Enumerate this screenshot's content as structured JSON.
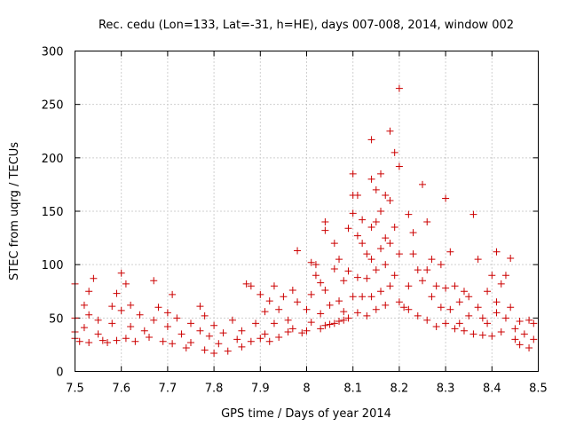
{
  "chart_data": {
    "type": "scatter",
    "title": "Rec. cedu (Lon=133, Lat=-31, h=HE), days 007-008, 2014, window 002",
    "xlabel": "GPS time / Days of year 2014",
    "ylabel": "STEC from uqrg / TECUs",
    "xlim": [
      7.5,
      8.5
    ],
    "ylim": [
      0,
      300
    ],
    "xticks": [
      7.5,
      7.6,
      7.7,
      7.8,
      7.9,
      8.0,
      8.1,
      8.2,
      8.3,
      8.4,
      8.5
    ],
    "xtick_labels": [
      "7.5",
      "7.6",
      "7.7",
      "7.8",
      "7.9",
      "8",
      "8.1",
      "8.2",
      "8.3",
      "8.4",
      "8.5"
    ],
    "yticks": [
      0,
      50,
      100,
      150,
      200,
      250,
      300
    ],
    "ytick_labels": [
      "0",
      "50",
      "100",
      "150",
      "200",
      "250",
      "300"
    ],
    "grid": true,
    "marker": "+",
    "color": "#cc0000",
    "series": [
      {
        "name": "STEC",
        "points": [
          [
            7.5,
            82
          ],
          [
            7.5,
            50
          ],
          [
            7.5,
            37
          ],
          [
            7.5,
            31
          ],
          [
            7.51,
            28
          ],
          [
            7.52,
            41
          ],
          [
            7.52,
            62
          ],
          [
            7.53,
            75
          ],
          [
            7.53,
            53
          ],
          [
            7.53,
            27
          ],
          [
            7.54,
            87
          ],
          [
            7.55,
            48
          ],
          [
            7.55,
            35
          ],
          [
            7.56,
            29
          ],
          [
            7.57,
            27
          ],
          [
            7.58,
            61
          ],
          [
            7.58,
            45
          ],
          [
            7.59,
            73
          ],
          [
            7.59,
            29
          ],
          [
            7.6,
            92
          ],
          [
            7.6,
            57
          ],
          [
            7.61,
            82
          ],
          [
            7.61,
            31
          ],
          [
            7.62,
            62
          ],
          [
            7.62,
            42
          ],
          [
            7.63,
            28
          ],
          [
            7.64,
            53
          ],
          [
            7.65,
            38
          ],
          [
            7.66,
            32
          ],
          [
            7.67,
            85
          ],
          [
            7.67,
            48
          ],
          [
            7.68,
            60
          ],
          [
            7.69,
            28
          ],
          [
            7.7,
            55
          ],
          [
            7.7,
            42
          ],
          [
            7.71,
            72
          ],
          [
            7.71,
            26
          ],
          [
            7.72,
            50
          ],
          [
            7.73,
            35
          ],
          [
            7.74,
            22
          ],
          [
            7.75,
            45
          ],
          [
            7.75,
            27
          ],
          [
            7.77,
            61
          ],
          [
            7.77,
            38
          ],
          [
            7.78,
            52
          ],
          [
            7.78,
            20
          ],
          [
            7.79,
            33
          ],
          [
            7.8,
            17
          ],
          [
            7.8,
            43
          ],
          [
            7.81,
            26
          ],
          [
            7.82,
            36
          ],
          [
            7.83,
            19
          ],
          [
            7.84,
            48
          ],
          [
            7.85,
            30
          ],
          [
            7.86,
            38
          ],
          [
            7.86,
            23
          ],
          [
            7.87,
            82
          ],
          [
            7.88,
            80
          ],
          [
            7.88,
            28
          ],
          [
            7.89,
            45
          ],
          [
            7.9,
            72
          ],
          [
            7.9,
            31
          ],
          [
            7.91,
            56
          ],
          [
            7.91,
            35
          ],
          [
            7.92,
            66
          ],
          [
            7.92,
            28
          ],
          [
            7.93,
            80
          ],
          [
            7.93,
            45
          ],
          [
            7.94,
            58
          ],
          [
            7.94,
            32
          ],
          [
            7.95,
            70
          ],
          [
            7.96,
            48
          ],
          [
            7.96,
            37
          ],
          [
            7.97,
            76
          ],
          [
            7.97,
            40
          ],
          [
            7.98,
            113
          ],
          [
            7.98,
            65
          ],
          [
            7.99,
            36
          ],
          [
            8.0,
            58
          ],
          [
            8.0,
            38
          ],
          [
            8.01,
            102
          ],
          [
            8.01,
            72
          ],
          [
            8.01,
            46
          ],
          [
            8.02,
            100
          ],
          [
            8.02,
            90
          ],
          [
            8.03,
            83
          ],
          [
            8.03,
            54
          ],
          [
            8.03,
            40
          ],
          [
            8.04,
            140
          ],
          [
            8.04,
            132
          ],
          [
            8.04,
            76
          ],
          [
            8.04,
            43
          ],
          [
            8.05,
            62
          ],
          [
            8.05,
            44
          ],
          [
            8.06,
            120
          ],
          [
            8.06,
            96
          ],
          [
            8.06,
            45
          ],
          [
            8.07,
            105
          ],
          [
            8.07,
            66
          ],
          [
            8.07,
            47
          ],
          [
            8.08,
            85
          ],
          [
            8.08,
            56
          ],
          [
            8.08,
            48
          ],
          [
            8.09,
            134
          ],
          [
            8.09,
            94
          ],
          [
            8.09,
            50
          ],
          [
            8.1,
            185
          ],
          [
            8.1,
            165
          ],
          [
            8.1,
            148
          ],
          [
            8.1,
            70
          ],
          [
            8.11,
            165
          ],
          [
            8.11,
            127
          ],
          [
            8.11,
            88
          ],
          [
            8.11,
            55
          ],
          [
            8.12,
            142
          ],
          [
            8.12,
            120
          ],
          [
            8.12,
            70
          ],
          [
            8.13,
            110
          ],
          [
            8.13,
            87
          ],
          [
            8.13,
            52
          ],
          [
            8.14,
            217
          ],
          [
            8.14,
            180
          ],
          [
            8.14,
            135
          ],
          [
            8.14,
            105
          ],
          [
            8.14,
            70
          ],
          [
            8.15,
            170
          ],
          [
            8.15,
            140
          ],
          [
            8.15,
            95
          ],
          [
            8.15,
            58
          ],
          [
            8.16,
            185
          ],
          [
            8.16,
            150
          ],
          [
            8.16,
            115
          ],
          [
            8.16,
            75
          ],
          [
            8.17,
            165
          ],
          [
            8.17,
            125
          ],
          [
            8.17,
            100
          ],
          [
            8.17,
            62
          ],
          [
            8.18,
            225
          ],
          [
            8.18,
            160
          ],
          [
            8.18,
            120
          ],
          [
            8.18,
            80
          ],
          [
            8.19,
            205
          ],
          [
            8.19,
            135
          ],
          [
            8.19,
            90
          ],
          [
            8.2,
            265
          ],
          [
            8.2,
            192
          ],
          [
            8.2,
            110
          ],
          [
            8.2,
            65
          ],
          [
            8.21,
            60
          ],
          [
            8.22,
            147
          ],
          [
            8.22,
            80
          ],
          [
            8.22,
            58
          ],
          [
            8.23,
            130
          ],
          [
            8.23,
            110
          ],
          [
            8.24,
            95
          ],
          [
            8.24,
            52
          ],
          [
            8.25,
            175
          ],
          [
            8.25,
            85
          ],
          [
            8.26,
            140
          ],
          [
            8.26,
            95
          ],
          [
            8.26,
            48
          ],
          [
            8.27,
            105
          ],
          [
            8.27,
            70
          ],
          [
            8.28,
            80
          ],
          [
            8.28,
            42
          ],
          [
            8.29,
            100
          ],
          [
            8.29,
            60
          ],
          [
            8.3,
            162
          ],
          [
            8.3,
            78
          ],
          [
            8.3,
            45
          ],
          [
            8.31,
            112
          ],
          [
            8.31,
            58
          ],
          [
            8.32,
            80
          ],
          [
            8.32,
            40
          ],
          [
            8.33,
            65
          ],
          [
            8.33,
            45
          ],
          [
            8.34,
            75
          ],
          [
            8.34,
            38
          ],
          [
            8.35,
            70
          ],
          [
            8.35,
            52
          ],
          [
            8.36,
            147
          ],
          [
            8.36,
            35
          ],
          [
            8.37,
            105
          ],
          [
            8.37,
            60
          ],
          [
            8.38,
            50
          ],
          [
            8.38,
            34
          ],
          [
            8.39,
            75
          ],
          [
            8.39,
            45
          ],
          [
            8.4,
            90
          ],
          [
            8.4,
            33
          ],
          [
            8.41,
            112
          ],
          [
            8.41,
            65
          ],
          [
            8.41,
            55
          ],
          [
            8.42,
            82
          ],
          [
            8.42,
            37
          ],
          [
            8.43,
            90
          ],
          [
            8.43,
            50
          ],
          [
            8.44,
            106
          ],
          [
            8.44,
            60
          ],
          [
            8.45,
            40
          ],
          [
            8.45,
            30
          ],
          [
            8.46,
            47
          ],
          [
            8.46,
            25
          ],
          [
            8.47,
            35
          ],
          [
            8.48,
            48
          ],
          [
            8.48,
            22
          ],
          [
            8.49,
            30
          ],
          [
            8.49,
            45
          ]
        ]
      }
    ]
  }
}
